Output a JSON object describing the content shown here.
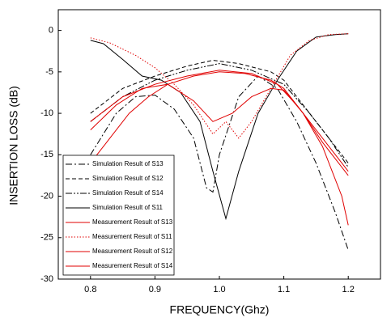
{
  "chart_data": {
    "type": "line",
    "xlabel": "FREQUENCY(Ghz)",
    "ylabel": "INSERTION LOSS (dB)",
    "xlim": [
      0.75,
      1.25
    ],
    "ylim": [
      -30,
      2.5
    ],
    "xticks": [
      0.8,
      0.9,
      {
        "value": 1,
        "label": "1.0"
      },
      1.1,
      1.2
    ],
    "yticks": [
      0,
      -5,
      -10,
      -15,
      -20,
      -25,
      -30
    ],
    "legend": "bottom-left",
    "series": [
      {
        "name": "Simulation Result of S13",
        "color": "#000000",
        "style": "dashdot",
        "x": [
          0.8,
          0.84,
          0.87,
          0.9,
          0.93,
          0.96,
          0.98,
          0.99,
          1.0,
          1.03,
          1.06,
          1.09,
          1.12,
          1.15,
          1.18,
          1.2
        ],
        "values": [
          -15,
          -10,
          -8,
          -7.8,
          -9.5,
          -13,
          -19,
          -19.5,
          -15,
          -8,
          -5.5,
          -7,
          -11,
          -16,
          -22,
          -26.5
        ]
      },
      {
        "name": "Simulation Result of S12",
        "color": "#000000",
        "style": "dashed",
        "x": [
          0.8,
          0.85,
          0.9,
          0.95,
          0.99,
          1.03,
          1.08,
          1.1,
          1.13,
          1.16,
          1.2
        ],
        "values": [
          -10,
          -7,
          -5.5,
          -4.3,
          -3.6,
          -4,
          -5,
          -6,
          -9,
          -12,
          -16
        ]
      },
      {
        "name": "Simulation Result of S14",
        "color": "#000000",
        "style": "dashdotdot",
        "x": [
          0.8,
          0.85,
          0.9,
          0.95,
          1.0,
          1.05,
          1.1,
          1.14,
          1.17,
          1.2
        ],
        "values": [
          -11,
          -8,
          -6,
          -4.8,
          -4,
          -4.8,
          -6.5,
          -10,
          -13,
          -16.5
        ]
      },
      {
        "name": "Simulation Result of S11",
        "color": "#000000",
        "style": "solid",
        "x": [
          0.8,
          0.82,
          0.85,
          0.88,
          0.91,
          0.94,
          0.97,
          0.99,
          1.01,
          1.03,
          1.06,
          1.09,
          1.12,
          1.15,
          1.18,
          1.2
        ],
        "values": [
          -1.2,
          -1.6,
          -3.5,
          -5.5,
          -6,
          -7.5,
          -11,
          -17,
          -22.7,
          -17,
          -10,
          -6,
          -2.5,
          -0.8,
          -0.5,
          -0.4
        ]
      },
      {
        "name": "Measurement Result of S13",
        "color": "#e00000",
        "style": "solid",
        "x": [
          0.8,
          0.83,
          0.86,
          0.89,
          0.92,
          0.96,
          1.0,
          1.04,
          1.08,
          1.1,
          1.13,
          1.16,
          1.19,
          1.2
        ],
        "values": [
          -16,
          -13,
          -10,
          -8,
          -6.5,
          -5.5,
          -5,
          -5.2,
          -6,
          -7,
          -10,
          -14,
          -20,
          -23.5
        ]
      },
      {
        "name": "Measurement Result of S11",
        "color": "#e00000",
        "style": "dotted",
        "x": [
          0.8,
          0.83,
          0.87,
          0.9,
          0.93,
          0.96,
          0.99,
          1.01,
          1.03,
          1.05,
          1.08,
          1.11,
          1.14,
          1.17,
          1.2
        ],
        "values": [
          -0.9,
          -1.5,
          -3,
          -4.5,
          -6.5,
          -9,
          -12.5,
          -11,
          -13,
          -11,
          -7,
          -3,
          -1.2,
          -0.5,
          -0.4
        ]
      },
      {
        "name": "Measurement Result of S12",
        "color": "#e00000",
        "style": "solid",
        "x": [
          0.8,
          0.85,
          0.9,
          0.95,
          1.0,
          1.05,
          1.09,
          1.12,
          1.16,
          1.2
        ],
        "values": [
          -11,
          -8,
          -6.5,
          -5.5,
          -4.8,
          -5.2,
          -6.5,
          -9,
          -13,
          -17
        ]
      },
      {
        "name": "Measurement Result of S14",
        "color": "#e00000",
        "style": "solid",
        "x": [
          0.8,
          0.84,
          0.88,
          0.92,
          0.96,
          0.99,
          1.02,
          1.05,
          1.08,
          1.1,
          1.13,
          1.16,
          1.2
        ],
        "values": [
          -12,
          -9,
          -7,
          -6.5,
          -8.5,
          -11,
          -10,
          -8,
          -7,
          -7.2,
          -10,
          -13.5,
          -17.5
        ]
      }
    ]
  }
}
